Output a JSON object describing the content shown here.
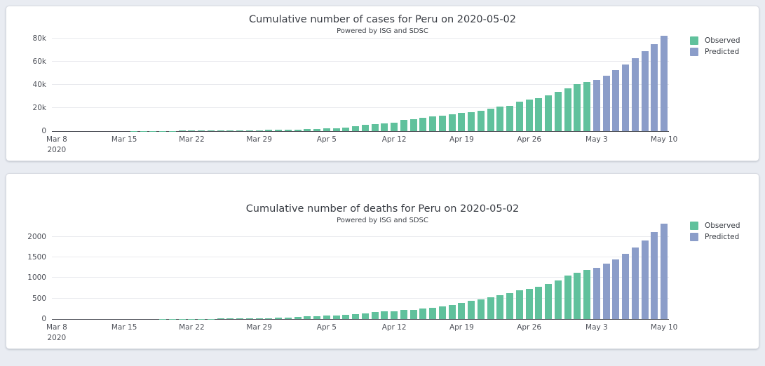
{
  "page": {
    "background_color": "#e9ecf2",
    "card_color": "#ffffff"
  },
  "chart_data": [
    {
      "type": "bar",
      "title": "Cumulative number of cases for Peru on 2020-05-02",
      "subtitle": "Powered by ISG and SDSC",
      "xlabel": "",
      "ylabel": "",
      "grid": true,
      "legend_position": "right-top",
      "ylim": [
        0,
        86000
      ],
      "yticks": [
        0,
        20000,
        40000,
        60000,
        80000
      ],
      "ytick_labels": [
        "0",
        "20k",
        "40k",
        "60k",
        "80k"
      ],
      "x_tick_labels": [
        "Mar 8\n2020",
        "Mar 15",
        "Mar 22",
        "Mar 29",
        "Apr 5",
        "Apr 12",
        "Apr 19",
        "Apr 26",
        "May 3",
        "May 10"
      ],
      "tick_every": 7,
      "series": [
        {
          "name": "Observed",
          "color": "#60c19c",
          "values": [
            6,
            9,
            11,
            15,
            22,
            28,
            38,
            43,
            86,
            117,
            145,
            234,
            263,
            318,
            363,
            395,
            416,
            480,
            580,
            635,
            671,
            852,
            950,
            1065,
            1323,
            1414,
            1595,
            1746,
            2281,
            2561,
            2954,
            4342,
            5256,
            5897,
            6848,
            7519,
            9784,
            10303,
            11475,
            12491,
            13489,
            14420,
            15628,
            16325,
            17837,
            19250,
            20914,
            21648,
            25331,
            27517,
            28699,
            31190,
            33931,
            36976,
            40459,
            42534
          ]
        },
        {
          "name": "Predicted",
          "color": "#8b9dc9",
          "values": [
            44500,
            48000,
            52600,
            57700,
            62900,
            68900,
            75300,
            82300
          ]
        }
      ]
    },
    {
      "type": "bar",
      "title": "Cumulative number of deaths for Peru on 2020-05-02",
      "subtitle": "Powered by ISG and SDSC",
      "xlabel": "",
      "ylabel": "",
      "grid": true,
      "legend_position": "right-top",
      "ylim": [
        0,
        2400
      ],
      "yticks": [
        0,
        500,
        1000,
        1500,
        2000
      ],
      "ytick_labels": [
        "0",
        "500",
        "1000",
        "1500",
        "2000"
      ],
      "x_tick_labels": [
        "Mar 8\n2020",
        "Mar 15",
        "Mar 22",
        "Mar 29",
        "Apr 5",
        "Apr 12",
        "Apr 19",
        "Apr 26",
        "May 3",
        "May 10"
      ],
      "tick_every": 7,
      "series": [
        {
          "name": "Observed",
          "color": "#60c19c",
          "values": [
            0,
            0,
            0,
            0,
            0,
            0,
            0,
            0,
            0,
            0,
            0,
            3,
            3,
            4,
            5,
            5,
            7,
            9,
            9,
            11,
            16,
            18,
            24,
            30,
            38,
            47,
            61,
            73,
            83,
            93,
            107,
            121,
            138,
            169,
            181,
            193,
            216,
            230,
            254,
            274,
            300,
            348,
            400,
            445,
            484,
            530,
            572,
            634,
            700,
            728,
            782,
            854,
            943,
            1051,
            1124,
            1200
          ]
        },
        {
          "name": "Predicted",
          "color": "#8b9dc9",
          "values": [
            1250,
            1340,
            1455,
            1590,
            1740,
            1915,
            2105,
            2320
          ]
        }
      ]
    }
  ]
}
